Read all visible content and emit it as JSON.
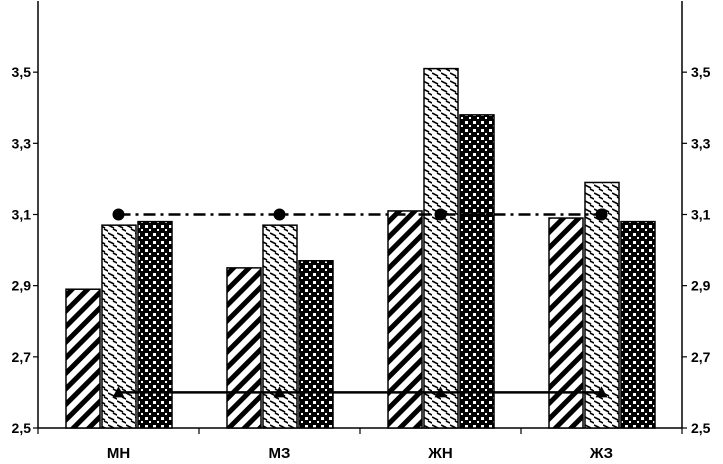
{
  "chart_data": {
    "type": "bar",
    "categories": [
      "МН",
      "МЗ",
      "ЖН",
      "ЖЗ"
    ],
    "series": [
      {
        "pattern": "diagonal-stripes",
        "values": [
          2.89,
          2.95,
          3.11,
          3.09
        ]
      },
      {
        "pattern": "dashed-hatch",
        "values": [
          3.07,
          3.07,
          3.51,
          3.19
        ]
      },
      {
        "pattern": "checker",
        "values": [
          3.08,
          2.97,
          3.38,
          3.08
        ]
      }
    ],
    "lines": [
      {
        "style": "dash-dot",
        "marker": "circle",
        "values": [
          3.1,
          3.1,
          3.1,
          3.1
        ]
      },
      {
        "style": "solid",
        "marker": "triangle",
        "values": [
          2.6,
          2.6,
          2.6,
          2.6
        ]
      }
    ],
    "ylim": [
      2.5,
      3.7
    ],
    "y_ticks": [
      "2,5",
      "2,7",
      "2,9",
      "3,1",
      "3,3",
      "3,5"
    ],
    "y_tick_values": [
      2.5,
      2.7,
      2.9,
      3.1,
      3.3,
      3.5
    ],
    "grid": false,
    "legend": "none",
    "colors": {
      "ink": "#000000",
      "background": "#ffffff"
    }
  }
}
